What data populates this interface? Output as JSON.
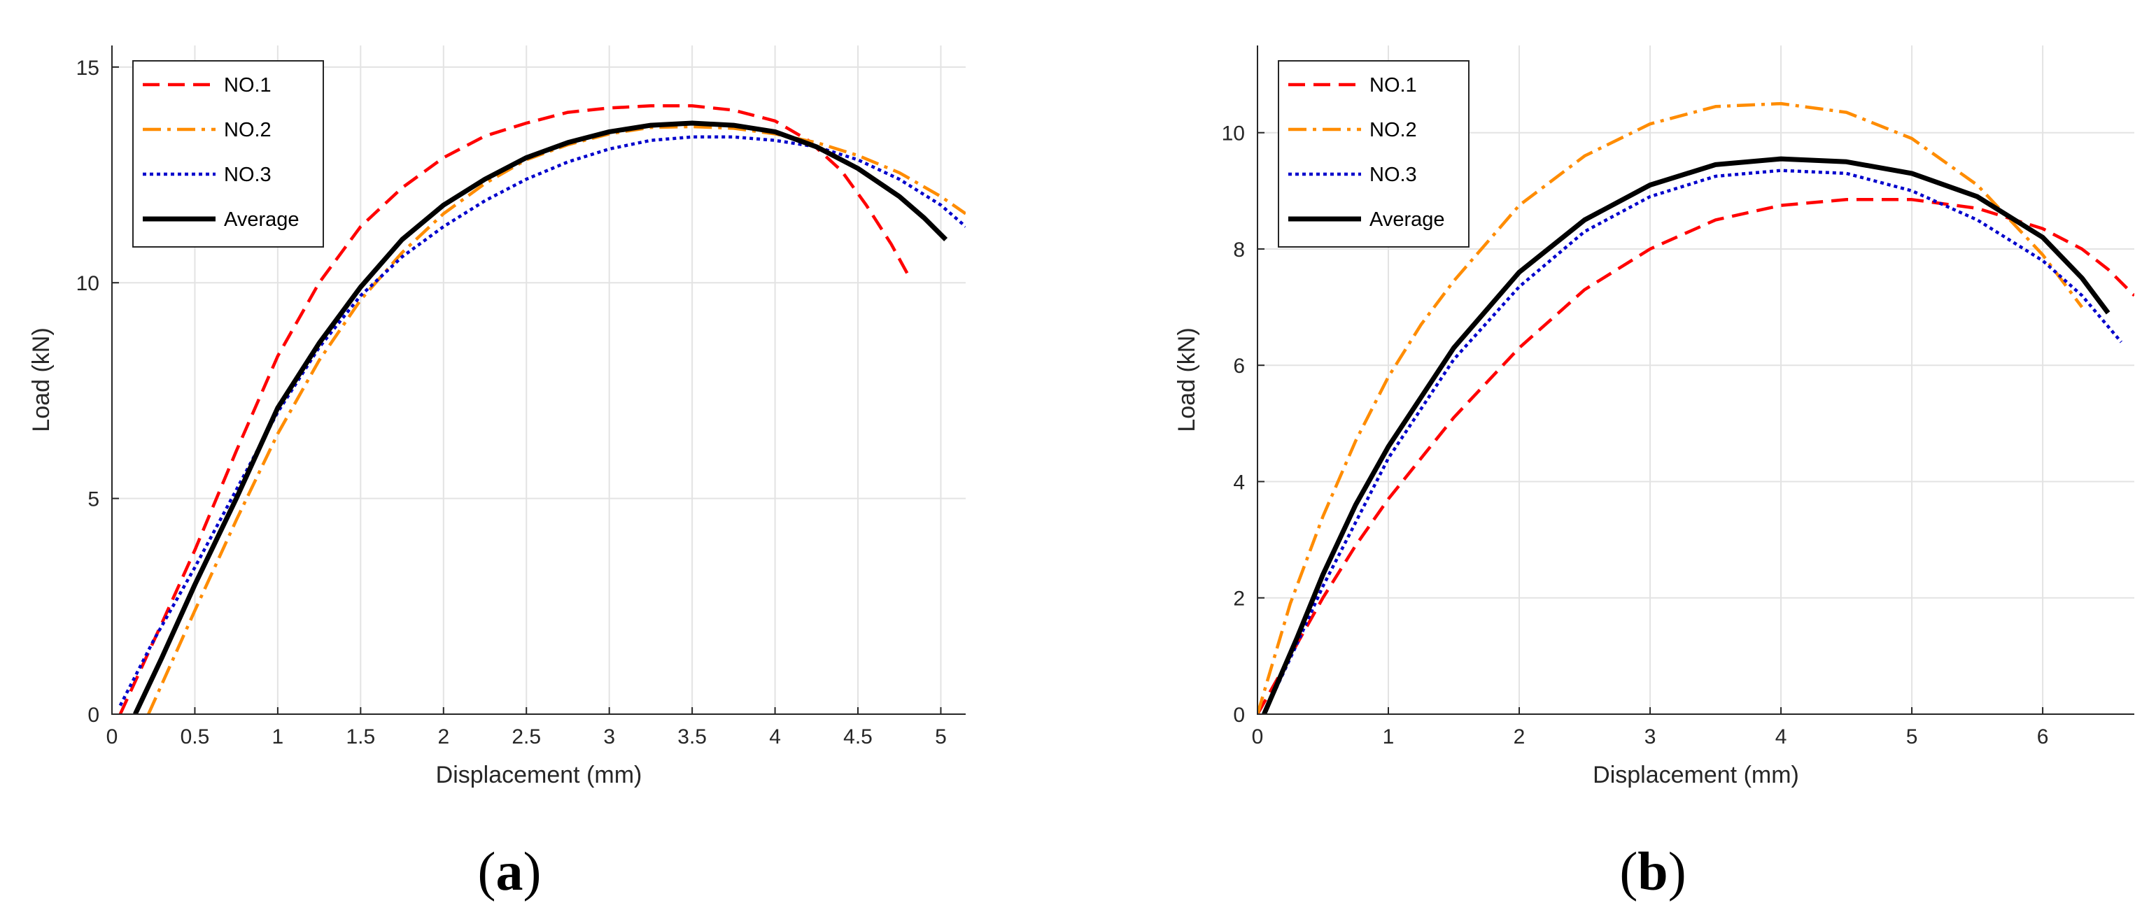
{
  "chart_data": [
    {
      "type": "line",
      "panel_label": "a",
      "xlabel": "Displacement (mm)",
      "ylabel": "Load (kN)",
      "xlim": [
        0,
        5.15
      ],
      "ylim": [
        0,
        15.5
      ],
      "xticks": [
        0,
        0.5,
        1,
        1.5,
        2,
        2.5,
        3,
        3.5,
        4,
        4.5,
        5
      ],
      "xtick_labels": [
        "0",
        "0.5",
        "1",
        "1.5",
        "2",
        "2.5",
        "3",
        "3.5",
        "4",
        "4.5",
        "5"
      ],
      "yticks": [
        0,
        5,
        10,
        15
      ],
      "ytick_labels": [
        "0",
        "5",
        "10",
        "15"
      ],
      "grid": true,
      "legend_position": "top-left",
      "series": [
        {
          "name": "NO.1",
          "color": "#ff0000",
          "style": "dashed",
          "x": [
            0.05,
            0.3,
            0.5,
            0.75,
            1.0,
            1.25,
            1.5,
            1.75,
            2.0,
            2.25,
            2.5,
            2.75,
            3.0,
            3.25,
            3.5,
            3.75,
            4.0,
            4.2,
            4.4,
            4.55,
            4.7,
            4.8
          ],
          "y": [
            0.0,
            2.1,
            3.8,
            6.1,
            8.3,
            10.0,
            11.3,
            12.2,
            12.9,
            13.4,
            13.7,
            13.95,
            14.05,
            14.1,
            14.1,
            14.0,
            13.75,
            13.3,
            12.6,
            11.8,
            10.9,
            10.2
          ]
        },
        {
          "name": "NO.2",
          "color": "#ff8c00",
          "style": "dashdot",
          "x": [
            0.22,
            0.5,
            0.75,
            1.0,
            1.25,
            1.5,
            1.75,
            2.0,
            2.25,
            2.5,
            2.75,
            3.0,
            3.25,
            3.5,
            3.75,
            4.0,
            4.25,
            4.5,
            4.75,
            5.0,
            5.15
          ],
          "y": [
            0.0,
            2.4,
            4.5,
            6.5,
            8.2,
            9.6,
            10.7,
            11.6,
            12.3,
            12.85,
            13.2,
            13.45,
            13.6,
            13.62,
            13.58,
            13.45,
            13.25,
            12.95,
            12.55,
            12.0,
            11.6
          ]
        },
        {
          "name": "NO.3",
          "color": "#0000cc",
          "style": "dotted",
          "x": [
            0.05,
            0.25,
            0.5,
            0.75,
            1.0,
            1.25,
            1.5,
            1.75,
            2.0,
            2.25,
            2.5,
            2.75,
            3.0,
            3.25,
            3.5,
            3.75,
            4.0,
            4.25,
            4.5,
            4.75,
            5.0,
            5.15
          ],
          "y": [
            0.2,
            1.7,
            3.4,
            5.2,
            7.0,
            8.5,
            9.7,
            10.6,
            11.3,
            11.9,
            12.4,
            12.8,
            13.1,
            13.3,
            13.38,
            13.38,
            13.3,
            13.15,
            12.85,
            12.4,
            11.8,
            11.3
          ]
        },
        {
          "name": "Average",
          "color": "#000000",
          "style": "solid",
          "x": [
            0.14,
            0.3,
            0.5,
            0.75,
            1.0,
            1.25,
            1.5,
            1.75,
            2.0,
            2.25,
            2.5,
            2.75,
            3.0,
            3.25,
            3.5,
            3.75,
            4.0,
            4.25,
            4.5,
            4.75,
            4.9,
            5.03
          ],
          "y": [
            0.0,
            1.3,
            3.0,
            5.0,
            7.1,
            8.6,
            9.9,
            11.0,
            11.8,
            12.4,
            12.9,
            13.25,
            13.5,
            13.65,
            13.7,
            13.65,
            13.5,
            13.15,
            12.65,
            12.0,
            11.5,
            11.0
          ]
        }
      ]
    },
    {
      "type": "line",
      "panel_label": "b",
      "xlabel": "Displacement (mm)",
      "ylabel": "Load (kN)",
      "xlim": [
        0,
        6.7
      ],
      "ylim": [
        0,
        11.5
      ],
      "xticks": [
        0,
        1,
        2,
        3,
        4,
        5,
        6
      ],
      "xtick_labels": [
        "0",
        "1",
        "2",
        "3",
        "4",
        "5",
        "6"
      ],
      "yticks": [
        0,
        2,
        4,
        6,
        8,
        10
      ],
      "ytick_labels": [
        "0",
        "2",
        "4",
        "6",
        "8",
        "10"
      ],
      "grid": true,
      "legend_position": "top-left",
      "series": [
        {
          "name": "NO.1",
          "color": "#ff0000",
          "style": "dashed",
          "x": [
            0.0,
            0.25,
            0.5,
            0.75,
            1.0,
            1.5,
            2.0,
            2.5,
            3.0,
            3.5,
            4.0,
            4.5,
            5.0,
            5.5,
            6.0,
            6.3,
            6.5,
            6.7
          ],
          "y": [
            0.0,
            1.0,
            2.0,
            2.9,
            3.7,
            5.1,
            6.3,
            7.3,
            8.0,
            8.5,
            8.75,
            8.85,
            8.85,
            8.7,
            8.35,
            8.0,
            7.65,
            7.2
          ]
        },
        {
          "name": "NO.2",
          "color": "#ff8c00",
          "style": "dashdot",
          "x": [
            0.0,
            0.25,
            0.5,
            0.75,
            1.0,
            1.25,
            1.5,
            2.0,
            2.5,
            3.0,
            3.5,
            4.0,
            4.5,
            5.0,
            5.5,
            6.0,
            6.3
          ],
          "y": [
            0.0,
            1.9,
            3.4,
            4.7,
            5.8,
            6.7,
            7.45,
            8.75,
            9.6,
            10.15,
            10.45,
            10.5,
            10.35,
            9.9,
            9.1,
            7.9,
            7.0
          ]
        },
        {
          "name": "NO.3",
          "color": "#0000cc",
          "style": "dotted",
          "x": [
            0.05,
            0.3,
            0.5,
            0.75,
            1.0,
            1.5,
            2.0,
            2.5,
            3.0,
            3.5,
            4.0,
            4.5,
            5.0,
            5.5,
            6.0,
            6.3,
            6.6
          ],
          "y": [
            0.0,
            1.2,
            2.2,
            3.3,
            4.4,
            6.1,
            7.35,
            8.3,
            8.9,
            9.25,
            9.35,
            9.3,
            9.0,
            8.5,
            7.8,
            7.2,
            6.4
          ]
        },
        {
          "name": "Average",
          "color": "#000000",
          "style": "solid",
          "x": [
            0.05,
            0.3,
            0.5,
            0.75,
            1.0,
            1.5,
            2.0,
            2.5,
            3.0,
            3.5,
            4.0,
            4.5,
            5.0,
            5.5,
            6.0,
            6.3,
            6.5
          ],
          "y": [
            0.0,
            1.3,
            2.4,
            3.6,
            4.6,
            6.3,
            7.6,
            8.5,
            9.1,
            9.45,
            9.55,
            9.5,
            9.3,
            8.9,
            8.2,
            7.5,
            6.9
          ]
        }
      ]
    }
  ]
}
